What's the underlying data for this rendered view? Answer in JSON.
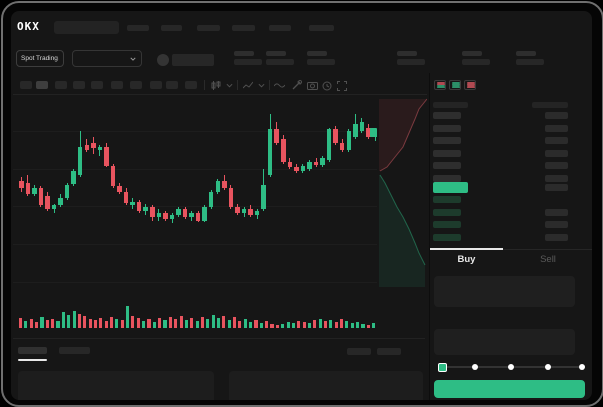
{
  "topnav": {
    "logo": "OKX"
  },
  "market_bar": {
    "mode_selector": "Spot Trading"
  },
  "colors": {
    "green": "#2ebd85",
    "red": "#e8545f",
    "bid_bar": "#1d3b2c",
    "ask_bar": "#2e2e2e",
    "amount_bar": "#2b2b2b",
    "accent_button": "#2ebd85"
  },
  "chart_data": {
    "type": "candlestick",
    "title": "",
    "xlabel": "",
    "ylabel": "",
    "note": "No axis labels visible; OHLC values normalized 0-100 of chart height",
    "ylim": [
      0,
      100
    ],
    "candles": [
      [
        57,
        59,
        51,
        53
      ],
      [
        56,
        60,
        49,
        50
      ],
      [
        50,
        55,
        49,
        53
      ],
      [
        53,
        54,
        43,
        44
      ],
      [
        49,
        51,
        41,
        42
      ],
      [
        42,
        45,
        40,
        44
      ],
      [
        44,
        50,
        43,
        48
      ],
      [
        48,
        56,
        47,
        55
      ],
      [
        55,
        63,
        54,
        62
      ],
      [
        60,
        83,
        59,
        75
      ],
      [
        76,
        79,
        72,
        73
      ],
      [
        77,
        80,
        71,
        74
      ],
      [
        73,
        76,
        70,
        75
      ],
      [
        75,
        77,
        64,
        65
      ],
      [
        65,
        66,
        53,
        54
      ],
      [
        54,
        56,
        50,
        51
      ],
      [
        51,
        53,
        44,
        45
      ],
      [
        44,
        48,
        42,
        46
      ],
      [
        46,
        47,
        40,
        41
      ],
      [
        41,
        45,
        39,
        43
      ],
      [
        43,
        44,
        36,
        38
      ],
      [
        38,
        42,
        36,
        40
      ],
      [
        40,
        41,
        36,
        37
      ],
      [
        37,
        40,
        35,
        39
      ],
      [
        39,
        43,
        38,
        42
      ],
      [
        42,
        43,
        37,
        38
      ],
      [
        38,
        41,
        36,
        40
      ],
      [
        40,
        41,
        35,
        36
      ],
      [
        36,
        44,
        35,
        43
      ],
      [
        43,
        52,
        42,
        51
      ],
      [
        51,
        58,
        50,
        57
      ],
      [
        57,
        60,
        52,
        53
      ],
      [
        53,
        55,
        42,
        43
      ],
      [
        43,
        45,
        39,
        40
      ],
      [
        40,
        43,
        38,
        42
      ],
      [
        42,
        44,
        38,
        39
      ],
      [
        39,
        42,
        37,
        41
      ],
      [
        42,
        63,
        41,
        55
      ],
      [
        60,
        92,
        59,
        84
      ],
      [
        84,
        88,
        76,
        77
      ],
      [
        79,
        81,
        66,
        67
      ],
      [
        67,
        69,
        63,
        64
      ],
      [
        64,
        66,
        61,
        62
      ],
      [
        62,
        66,
        61,
        65
      ],
      [
        63,
        68,
        62,
        67
      ],
      [
        67,
        69,
        64,
        65
      ],
      [
        65,
        70,
        64,
        69
      ],
      [
        68,
        85,
        67,
        84
      ],
      [
        84,
        86,
        76,
        77
      ],
      [
        77,
        79,
        72,
        73
      ],
      [
        73,
        84,
        72,
        83
      ],
      [
        80,
        92,
        79,
        87
      ],
      [
        83,
        90,
        82,
        88
      ],
      [
        85,
        87,
        79,
        80
      ],
      [
        80,
        84,
        78,
        82
      ]
    ],
    "volumes": [
      [
        10,
        0
      ],
      [
        7,
        1
      ],
      [
        9,
        0
      ],
      [
        6,
        0
      ],
      [
        11,
        1
      ],
      [
        8,
        0
      ],
      [
        9,
        0
      ],
      [
        7,
        1
      ],
      [
        16,
        1
      ],
      [
        13,
        1
      ],
      [
        17,
        1
      ],
      [
        14,
        0
      ],
      [
        12,
        0
      ],
      [
        9,
        0
      ],
      [
        8,
        0
      ],
      [
        10,
        0
      ],
      [
        7,
        0
      ],
      [
        11,
        0
      ],
      [
        9,
        1
      ],
      [
        8,
        0
      ],
      [
        22,
        1
      ],
      [
        12,
        0
      ],
      [
        10,
        0
      ],
      [
        7,
        1
      ],
      [
        9,
        0
      ],
      [
        6,
        1
      ],
      [
        10,
        0
      ],
      [
        8,
        1
      ],
      [
        11,
        0
      ],
      [
        9,
        0
      ],
      [
        12,
        0
      ],
      [
        8,
        1
      ],
      [
        10,
        0
      ],
      [
        7,
        1
      ],
      [
        11,
        0
      ],
      [
        9,
        1
      ],
      [
        13,
        1
      ],
      [
        10,
        1
      ],
      [
        12,
        0
      ],
      [
        8,
        1
      ],
      [
        11,
        0
      ],
      [
        7,
        0
      ],
      [
        9,
        1
      ],
      [
        6,
        1
      ],
      [
        8,
        0
      ],
      [
        5,
        1
      ],
      [
        7,
        0
      ],
      [
        4,
        0
      ],
      [
        3,
        0
      ],
      [
        4,
        1
      ],
      [
        6,
        1
      ],
      [
        5,
        1
      ],
      [
        7,
        0
      ],
      [
        6,
        0
      ],
      [
        5,
        1
      ],
      [
        8,
        0
      ],
      [
        9,
        1
      ],
      [
        7,
        0
      ],
      [
        8,
        1
      ],
      [
        6,
        0
      ],
      [
        9,
        0
      ],
      [
        7,
        1
      ],
      [
        5,
        1
      ],
      [
        6,
        1
      ],
      [
        4,
        1
      ],
      [
        3,
        0
      ],
      [
        5,
        1
      ]
    ]
  },
  "orderbook": {
    "view_modes": [
      "order-book-combined",
      "order-book-bids",
      "order-book-asks"
    ],
    "ask_rows": [
      [
        1,
        1
      ],
      [
        1,
        1
      ],
      [
        1,
        1
      ],
      [
        1,
        1
      ],
      [
        1,
        1
      ],
      [
        1,
        1
      ]
    ],
    "mid_amount": 1,
    "bid_rows": [
      [
        1,
        0
      ],
      [
        1,
        1
      ],
      [
        1,
        1
      ],
      [
        1,
        1
      ]
    ],
    "last_price_state": "up"
  },
  "trade_panel": {
    "tabs": [
      {
        "label": "Buy",
        "active": true
      },
      {
        "label": "Sell",
        "active": false
      }
    ],
    "slider_stop_count": 5,
    "slider_value_index": 0,
    "submit_label": ""
  }
}
